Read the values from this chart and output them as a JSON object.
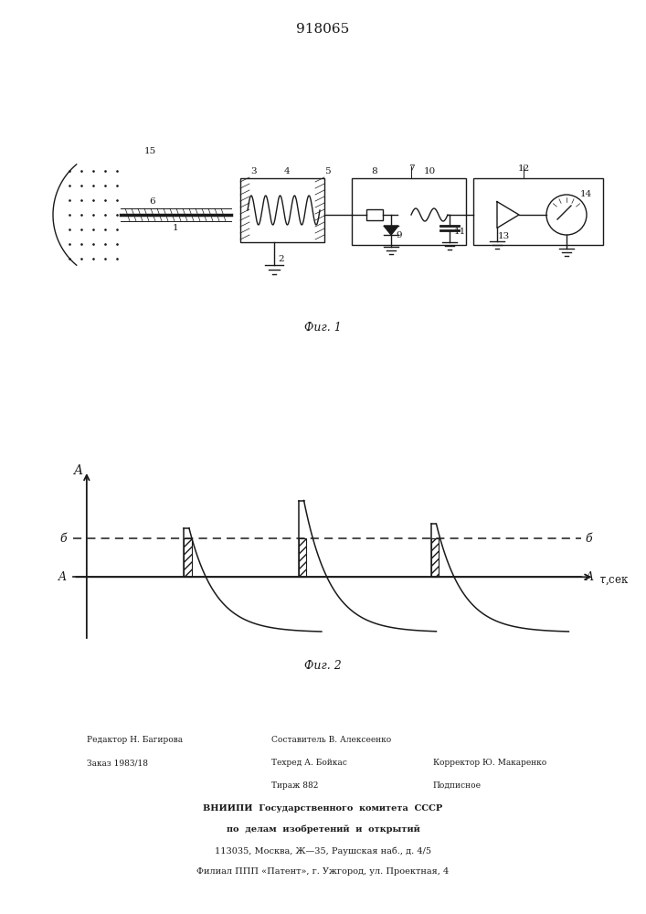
{
  "title": "918065",
  "fig1_caption": "Фиг. 1",
  "fig2_caption": "Фиг. 2",
  "line_color": "#1a1a1a"
}
